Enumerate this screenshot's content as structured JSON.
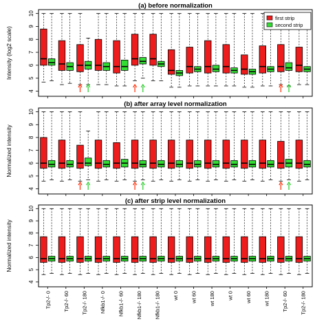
{
  "categories": [
    "Tp2-/- 0",
    "Tp2-/- 60",
    "Tp2-/- 180",
    "Nfkb1-/- 0",
    "Nfkb1-/- 60",
    "Nfkb1-/- 180",
    "Nfkb1-/- 180",
    "wt 0",
    "wt 60",
    "wt 180",
    "wt 0",
    "wt 60",
    "wt 180",
    "Tp2-/- 60",
    "Tp2-/- 180"
  ],
  "x_tick_labels": [
    "Tp2-/- 0",
    "Tp2-/- 60",
    "Tp2-/- 180",
    "Nfkb1-/- 0",
    "Nfkb1-/- 60",
    "Nfkb1-/- 180",
    "Nfkb1-/- 180",
    "wt 0",
    "wt 60",
    "wt 180",
    "wt 0",
    "wt 60",
    "wt 180",
    "Tp2-/- 60",
    "Tp2-/- 180"
  ],
  "legend": [
    {
      "name": "first strip",
      "color": "#ee1c1c"
    },
    {
      "name": "second strip",
      "color": "#33dd33"
    }
  ],
  "outlier_arrows": [
    {
      "category_index": 2,
      "series": "first strip",
      "color": "#ff2a00"
    },
    {
      "category_index": 2,
      "series": "second strip",
      "color": "#22cc22"
    },
    {
      "category_index": 5,
      "series": "first strip",
      "color": "#ff2a00"
    },
    {
      "category_index": 5,
      "series": "second strip",
      "color": "#22cc22"
    },
    {
      "category_index": 13,
      "series": "first strip",
      "color": "#ff2a00"
    },
    {
      "category_index": 13,
      "series": "second strip",
      "color": "#22cc22"
    }
  ],
  "chart_data": [
    {
      "type": "boxplot",
      "title": "(a) before normalization",
      "ylabel": "Intensity (log2 scale)",
      "ylim": [
        3.6,
        10.3
      ],
      "yticks": [
        4,
        5,
        6,
        7,
        8,
        9,
        10
      ],
      "legend_position": "top-right",
      "show_arrows": true,
      "series": [
        {
          "name": "first strip",
          "color": "#ee1c1c",
          "boxes": [
            {
              "q1": 6.0,
              "median": 6.5,
              "q3": 8.8,
              "whisker_low": 4.7,
              "whisker_high": 10.0
            },
            {
              "q1": 5.6,
              "median": 6.1,
              "q3": 7.9,
              "whisker_low": 4.5,
              "whisker_high": 10.0
            },
            {
              "q1": 5.5,
              "median": 6.0,
              "q3": 7.6,
              "whisker_low": 4.5,
              "whisker_high": 10.0
            },
            {
              "q1": 5.6,
              "median": 6.0,
              "q3": 8.0,
              "whisker_low": 4.5,
              "whisker_high": 10.0
            },
            {
              "q1": 5.4,
              "median": 5.9,
              "q3": 7.9,
              "whisker_low": 4.4,
              "whisker_high": 10.0
            },
            {
              "q1": 6.0,
              "median": 6.5,
              "q3": 8.4,
              "whisker_low": 4.8,
              "whisker_high": 10.0
            },
            {
              "q1": 6.0,
              "median": 6.5,
              "q3": 8.4,
              "whisker_low": 4.8,
              "whisker_high": 10.0
            },
            {
              "q1": 5.3,
              "median": 5.6,
              "q3": 7.2,
              "whisker_low": 4.3,
              "whisker_high": 10.0
            },
            {
              "q1": 5.4,
              "median": 5.9,
              "q3": 7.4,
              "whisker_low": 4.4,
              "whisker_high": 10.0
            },
            {
              "q1": 5.4,
              "median": 5.9,
              "q3": 7.9,
              "whisker_low": 4.4,
              "whisker_high": 10.0
            },
            {
              "q1": 5.4,
              "median": 5.9,
              "q3": 7.6,
              "whisker_low": 4.4,
              "whisker_high": 10.0
            },
            {
              "q1": 5.3,
              "median": 5.7,
              "q3": 6.8,
              "whisker_low": 4.3,
              "whisker_high": 10.0
            },
            {
              "q1": 5.4,
              "median": 5.9,
              "q3": 7.5,
              "whisker_low": 4.4,
              "whisker_high": 10.0
            },
            {
              "q1": 5.5,
              "median": 5.9,
              "q3": 7.6,
              "whisker_low": 4.5,
              "whisker_high": 10.0
            },
            {
              "q1": 5.5,
              "median": 6.0,
              "q3": 7.4,
              "whisker_low": 4.5,
              "whisker_high": 10.0
            }
          ]
        },
        {
          "name": "second strip",
          "color": "#33dd33",
          "boxes": [
            {
              "q1": 6.0,
              "median": 6.2,
              "q3": 6.5,
              "whisker_low": 4.8,
              "whisker_high": 10.0
            },
            {
              "q1": 5.6,
              "median": 5.9,
              "q3": 6.2,
              "whisker_low": 4.6,
              "whisker_high": 10.0
            },
            {
              "q1": 5.7,
              "median": 6.0,
              "q3": 6.3,
              "whisker_low": 4.5,
              "whisker_high": 8.1
            },
            {
              "q1": 5.6,
              "median": 5.9,
              "q3": 6.2,
              "whisker_low": 4.5,
              "whisker_high": 10.0
            },
            {
              "q1": 5.6,
              "median": 5.9,
              "q3": 6.4,
              "whisker_low": 4.4,
              "whisker_high": 10.0
            },
            {
              "q1": 6.1,
              "median": 6.3,
              "q3": 6.6,
              "whisker_low": 5.0,
              "whisker_high": 10.0
            },
            {
              "q1": 5.9,
              "median": 6.1,
              "q3": 6.3,
              "whisker_low": 4.8,
              "whisker_high": 10.0
            },
            {
              "q1": 5.2,
              "median": 5.4,
              "q3": 5.6,
              "whisker_low": 4.3,
              "whisker_high": 10.0
            },
            {
              "q1": 5.5,
              "median": 5.7,
              "q3": 5.9,
              "whisker_low": 4.4,
              "whisker_high": 10.0
            },
            {
              "q1": 5.5,
              "median": 5.7,
              "q3": 6.0,
              "whisker_low": 4.4,
              "whisker_high": 10.0
            },
            {
              "q1": 5.4,
              "median": 5.6,
              "q3": 5.8,
              "whisker_low": 4.4,
              "whisker_high": 10.0
            },
            {
              "q1": 5.3,
              "median": 5.5,
              "q3": 5.7,
              "whisker_low": 4.3,
              "whisker_high": 10.0
            },
            {
              "q1": 5.5,
              "median": 5.7,
              "q3": 5.9,
              "whisker_low": 4.4,
              "whisker_high": 10.0
            },
            {
              "q1": 5.6,
              "median": 5.8,
              "q3": 6.2,
              "whisker_low": 4.4,
              "whisker_high": 10.0
            },
            {
              "q1": 5.5,
              "median": 5.7,
              "q3": 5.9,
              "whisker_low": 4.5,
              "whisker_high": 10.0
            }
          ]
        }
      ]
    },
    {
      "type": "boxplot",
      "title": "(b) after array level normalization",
      "ylabel": "Normalized intensity",
      "ylim": [
        3.6,
        10.3
      ],
      "yticks": [
        4,
        5,
        6,
        7,
        8,
        9,
        10
      ],
      "show_arrows": true,
      "series": [
        {
          "name": "first strip",
          "color": "#ee1c1c",
          "boxes": [
            {
              "q1": 5.6,
              "median": 6.0,
              "q3": 8.0,
              "whisker_low": 4.6,
              "whisker_high": 10.0
            },
            {
              "q1": 5.6,
              "median": 6.0,
              "q3": 7.8,
              "whisker_low": 4.6,
              "whisker_high": 10.0
            },
            {
              "q1": 5.6,
              "median": 6.0,
              "q3": 7.4,
              "whisker_low": 4.6,
              "whisker_high": 10.0
            },
            {
              "q1": 5.6,
              "median": 6.0,
              "q3": 7.8,
              "whisker_low": 4.6,
              "whisker_high": 10.0
            },
            {
              "q1": 5.6,
              "median": 6.0,
              "q3": 7.6,
              "whisker_low": 4.6,
              "whisker_high": 10.0
            },
            {
              "q1": 5.6,
              "median": 6.0,
              "q3": 7.8,
              "whisker_low": 4.6,
              "whisker_high": 10.0
            },
            {
              "q1": 5.6,
              "median": 6.0,
              "q3": 7.8,
              "whisker_low": 4.6,
              "whisker_high": 10.0
            },
            {
              "q1": 5.6,
              "median": 6.0,
              "q3": 7.8,
              "whisker_low": 4.6,
              "whisker_high": 10.0
            },
            {
              "q1": 5.6,
              "median": 6.0,
              "q3": 7.8,
              "whisker_low": 4.6,
              "whisker_high": 10.0
            },
            {
              "q1": 5.6,
              "median": 6.0,
              "q3": 7.8,
              "whisker_low": 4.6,
              "whisker_high": 10.0
            },
            {
              "q1": 5.6,
              "median": 6.0,
              "q3": 7.8,
              "whisker_low": 4.6,
              "whisker_high": 10.0
            },
            {
              "q1": 5.6,
              "median": 6.0,
              "q3": 7.8,
              "whisker_low": 4.6,
              "whisker_high": 10.0
            },
            {
              "q1": 5.6,
              "median": 6.0,
              "q3": 7.8,
              "whisker_low": 4.6,
              "whisker_high": 10.0
            },
            {
              "q1": 5.6,
              "median": 6.0,
              "q3": 7.7,
              "whisker_low": 4.6,
              "whisker_high": 10.0
            },
            {
              "q1": 5.6,
              "median": 6.0,
              "q3": 7.8,
              "whisker_low": 4.6,
              "whisker_high": 10.0
            }
          ]
        },
        {
          "name": "second strip",
          "color": "#33dd33",
          "boxes": [
            {
              "q1": 5.7,
              "median": 5.9,
              "q3": 6.2,
              "whisker_low": 4.7,
              "whisker_high": 10.0
            },
            {
              "q1": 5.7,
              "median": 5.9,
              "q3": 6.2,
              "whisker_low": 4.7,
              "whisker_high": 10.0
            },
            {
              "q1": 5.8,
              "median": 6.0,
              "q3": 6.4,
              "whisker_low": 4.7,
              "whisker_high": 8.5
            },
            {
              "q1": 5.7,
              "median": 5.9,
              "q3": 6.2,
              "whisker_low": 4.7,
              "whisker_high": 10.0
            },
            {
              "q1": 5.7,
              "median": 6.0,
              "q3": 6.3,
              "whisker_low": 4.7,
              "whisker_high": 10.0
            },
            {
              "q1": 5.7,
              "median": 5.9,
              "q3": 6.2,
              "whisker_low": 4.7,
              "whisker_high": 10.0
            },
            {
              "q1": 5.7,
              "median": 5.9,
              "q3": 6.2,
              "whisker_low": 4.7,
              "whisker_high": 10.0
            },
            {
              "q1": 5.7,
              "median": 5.9,
              "q3": 6.2,
              "whisker_low": 4.7,
              "whisker_high": 10.0
            },
            {
              "q1": 5.7,
              "median": 5.9,
              "q3": 6.2,
              "whisker_low": 4.7,
              "whisker_high": 10.0
            },
            {
              "q1": 5.7,
              "median": 5.9,
              "q3": 6.2,
              "whisker_low": 4.7,
              "whisker_high": 10.0
            },
            {
              "q1": 5.7,
              "median": 5.9,
              "q3": 6.2,
              "whisker_low": 4.7,
              "whisker_high": 10.0
            },
            {
              "q1": 5.7,
              "median": 5.9,
              "q3": 6.2,
              "whisker_low": 4.7,
              "whisker_high": 10.0
            },
            {
              "q1": 5.7,
              "median": 5.9,
              "q3": 6.2,
              "whisker_low": 4.7,
              "whisker_high": 10.0
            },
            {
              "q1": 5.7,
              "median": 6.0,
              "q3": 6.3,
              "whisker_low": 4.7,
              "whisker_high": 10.0
            },
            {
              "q1": 5.7,
              "median": 5.9,
              "q3": 6.2,
              "whisker_low": 4.7,
              "whisker_high": 10.0
            }
          ]
        }
      ]
    },
    {
      "type": "boxplot",
      "title": "(c) after strip level normalization",
      "ylabel": "Normalized intensity",
      "ylim": [
        3.6,
        10.3
      ],
      "yticks": [
        4,
        5,
        6,
        7,
        8,
        9,
        10
      ],
      "show_arrows": false,
      "show_x_ticklabels": true,
      "series": [
        {
          "name": "first strip",
          "color": "#ee1c1c",
          "boxes": [
            {
              "q1": 5.6,
              "median": 5.9,
              "q3": 7.7,
              "whisker_low": 4.6,
              "whisker_high": 10.0
            },
            {
              "q1": 5.6,
              "median": 5.9,
              "q3": 7.7,
              "whisker_low": 4.6,
              "whisker_high": 10.0
            },
            {
              "q1": 5.6,
              "median": 5.9,
              "q3": 7.7,
              "whisker_low": 4.6,
              "whisker_high": 10.0
            },
            {
              "q1": 5.6,
              "median": 5.9,
              "q3": 7.7,
              "whisker_low": 4.6,
              "whisker_high": 10.0
            },
            {
              "q1": 5.6,
              "median": 5.9,
              "q3": 7.7,
              "whisker_low": 4.6,
              "whisker_high": 10.0
            },
            {
              "q1": 5.6,
              "median": 5.9,
              "q3": 7.7,
              "whisker_low": 4.6,
              "whisker_high": 10.0
            },
            {
              "q1": 5.6,
              "median": 5.9,
              "q3": 7.7,
              "whisker_low": 4.6,
              "whisker_high": 10.0
            },
            {
              "q1": 5.6,
              "median": 5.9,
              "q3": 7.7,
              "whisker_low": 4.6,
              "whisker_high": 10.0
            },
            {
              "q1": 5.6,
              "median": 5.9,
              "q3": 7.7,
              "whisker_low": 4.6,
              "whisker_high": 10.0
            },
            {
              "q1": 5.6,
              "median": 5.9,
              "q3": 7.7,
              "whisker_low": 4.6,
              "whisker_high": 10.0
            },
            {
              "q1": 5.6,
              "median": 5.9,
              "q3": 7.7,
              "whisker_low": 4.6,
              "whisker_high": 10.0
            },
            {
              "q1": 5.6,
              "median": 5.9,
              "q3": 7.7,
              "whisker_low": 4.6,
              "whisker_high": 10.0
            },
            {
              "q1": 5.6,
              "median": 5.9,
              "q3": 7.7,
              "whisker_low": 4.6,
              "whisker_high": 10.0
            },
            {
              "q1": 5.6,
              "median": 5.9,
              "q3": 7.7,
              "whisker_low": 4.6,
              "whisker_high": 10.0
            },
            {
              "q1": 5.6,
              "median": 5.9,
              "q3": 7.7,
              "whisker_low": 4.6,
              "whisker_high": 10.0
            }
          ]
        },
        {
          "name": "second strip",
          "color": "#33dd33",
          "boxes": [
            {
              "q1": 5.7,
              "median": 5.9,
              "q3": 6.1,
              "whisker_low": 4.7,
              "whisker_high": 10.0
            },
            {
              "q1": 5.7,
              "median": 5.9,
              "q3": 6.1,
              "whisker_low": 4.7,
              "whisker_high": 10.0
            },
            {
              "q1": 5.7,
              "median": 5.9,
              "q3": 6.1,
              "whisker_low": 4.7,
              "whisker_high": 10.0
            },
            {
              "q1": 5.7,
              "median": 5.9,
              "q3": 6.1,
              "whisker_low": 4.7,
              "whisker_high": 10.0
            },
            {
              "q1": 5.7,
              "median": 5.9,
              "q3": 6.1,
              "whisker_low": 4.7,
              "whisker_high": 10.0
            },
            {
              "q1": 5.7,
              "median": 5.9,
              "q3": 6.1,
              "whisker_low": 4.7,
              "whisker_high": 10.0
            },
            {
              "q1": 5.7,
              "median": 5.9,
              "q3": 6.1,
              "whisker_low": 4.7,
              "whisker_high": 10.0
            },
            {
              "q1": 5.7,
              "median": 5.9,
              "q3": 6.1,
              "whisker_low": 4.7,
              "whisker_high": 10.0
            },
            {
              "q1": 5.7,
              "median": 5.9,
              "q3": 6.1,
              "whisker_low": 4.7,
              "whisker_high": 10.0
            },
            {
              "q1": 5.7,
              "median": 5.9,
              "q3": 6.1,
              "whisker_low": 4.7,
              "whisker_high": 10.0
            },
            {
              "q1": 5.7,
              "median": 5.9,
              "q3": 6.1,
              "whisker_low": 4.7,
              "whisker_high": 10.0
            },
            {
              "q1": 5.7,
              "median": 5.9,
              "q3": 6.1,
              "whisker_low": 4.7,
              "whisker_high": 10.0
            },
            {
              "q1": 5.7,
              "median": 5.9,
              "q3": 6.1,
              "whisker_low": 4.7,
              "whisker_high": 10.0
            },
            {
              "q1": 5.7,
              "median": 5.9,
              "q3": 6.1,
              "whisker_low": 4.7,
              "whisker_high": 10.0
            },
            {
              "q1": 5.7,
              "median": 5.9,
              "q3": 6.1,
              "whisker_low": 4.7,
              "whisker_high": 10.0
            }
          ]
        }
      ]
    }
  ]
}
